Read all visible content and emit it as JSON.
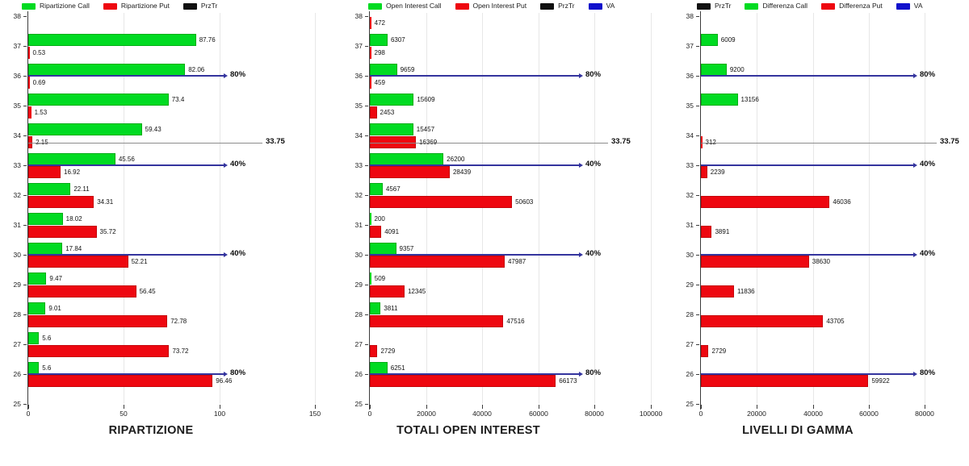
{
  "page": {
    "background": "#ffffff"
  },
  "colors": {
    "call_green": "#00db22",
    "put_red": "#ee0710",
    "va_blue": "#34349e",
    "va_legend_blue": "#1111cc",
    "prztr_gray": "#8c8c8c",
    "prztr_black": "#111111",
    "grid": "#e7e7e7",
    "axis": "#3c3c3c"
  },
  "chart_data": [
    {
      "type": "bar",
      "orientation": "horizontal",
      "title": "RIPARTIZIONE",
      "categories": [
        38,
        37,
        36,
        35,
        34,
        33,
        32,
        31,
        30,
        29,
        28,
        27,
        26,
        25
      ],
      "series": [
        {
          "name": "Ripartizione Call",
          "role": "call",
          "color_key": "call_green",
          "values": [
            null,
            87.76,
            82.06,
            73.4,
            59.43,
            45.56,
            22.11,
            18.02,
            17.84,
            9.47,
            9.01,
            5.6,
            5.6,
            null
          ]
        },
        {
          "name": "Ripartizione Put",
          "role": "put",
          "color_key": "put_red",
          "values": [
            null,
            0.53,
            0.69,
            1.53,
            2.15,
            16.92,
            34.31,
            35.72,
            52.21,
            56.45,
            72.78,
            73.72,
            96.46,
            null
          ]
        }
      ],
      "legend": [
        {
          "label": "Ripartizione Call",
          "swatch": "call_green"
        },
        {
          "label": "Ripartizione Put",
          "swatch": "put_red"
        },
        {
          "label": "PrzTr",
          "swatch": "prztr_black"
        }
      ],
      "legend_position": "top",
      "grid": "vertical-major",
      "xlim": [
        0,
        150
      ],
      "xticks": [
        0,
        50,
        100,
        150
      ],
      "ylim": [
        25,
        38
      ],
      "ref_lines": [
        {
          "y": 36,
          "label": "80%",
          "kind": "va",
          "x_end": 104
        },
        {
          "y": 33.75,
          "label": "33.75",
          "kind": "prztr",
          "x_end": 122.5
        },
        {
          "y": 33,
          "label": "40%",
          "kind": "va",
          "x_end": 104
        },
        {
          "y": 30,
          "label": "40%",
          "kind": "va",
          "x_end": 104
        },
        {
          "y": 26,
          "label": "80%",
          "kind": "va",
          "x_end": 104
        }
      ]
    },
    {
      "type": "bar",
      "orientation": "horizontal",
      "title": "TOTALI OPEN INTEREST",
      "categories": [
        38,
        37,
        36,
        35,
        34,
        33,
        32,
        31,
        30,
        29,
        28,
        27,
        26,
        25
      ],
      "series": [
        {
          "name": "Open Interest Call",
          "role": "call",
          "color_key": "call_green",
          "values": [
            null,
            6307,
            9659,
            15609,
            15457,
            26200,
            4567,
            200,
            9357,
            509,
            3811,
            null,
            6251,
            null
          ]
        },
        {
          "name": "Open Interest Put",
          "role": "put",
          "color_key": "put_red",
          "values": [
            472,
            298,
            459,
            2453,
            16369,
            28439,
            50603,
            4091,
            47987,
            12345,
            47516,
            2729,
            66173,
            null
          ]
        }
      ],
      "legend": [
        {
          "label": "Open Interest Call",
          "swatch": "call_green"
        },
        {
          "label": "Open Interest Put",
          "swatch": "put_red"
        },
        {
          "label": "PrzTr",
          "swatch": "prztr_black"
        },
        {
          "label": "VA",
          "swatch": "va_legend_blue"
        }
      ],
      "legend_position": "top",
      "grid": "vertical-major",
      "xlim": [
        0,
        100000
      ],
      "xticks": [
        0,
        20000,
        40000,
        60000,
        80000,
        100000
      ],
      "ylim": [
        25,
        38
      ],
      "ref_lines": [
        {
          "y": 36,
          "label": "80%",
          "kind": "va",
          "x_end": 75500
        },
        {
          "y": 33.75,
          "label": "33.75",
          "kind": "prztr",
          "x_end": 84800
        },
        {
          "y": 33,
          "label": "40%",
          "kind": "va",
          "x_end": 75500
        },
        {
          "y": 30,
          "label": "40%",
          "kind": "va",
          "x_end": 75500
        },
        {
          "y": 26,
          "label": "80%",
          "kind": "va",
          "x_end": 75500
        }
      ]
    },
    {
      "type": "bar",
      "orientation": "horizontal",
      "title": "LIVELLI DI GAMMA",
      "categories": [
        38,
        37,
        36,
        35,
        34,
        33,
        32,
        31,
        30,
        29,
        28,
        27,
        26,
        25
      ],
      "series": [
        {
          "name": "Differenza Call",
          "role": "call",
          "color_key": "call_green",
          "values": [
            null,
            6009,
            9200,
            13156,
            null,
            null,
            null,
            null,
            null,
            null,
            null,
            null,
            null,
            null
          ]
        },
        {
          "name": "Differenza Put",
          "role": "put",
          "color_key": "put_red",
          "values": [
            null,
            null,
            null,
            null,
            312,
            2239,
            46036,
            3891,
            38630,
            11836,
            43705,
            2729,
            59922,
            null
          ]
        }
      ],
      "legend": [
        {
          "label": "PrzTr",
          "swatch": "prztr_black"
        },
        {
          "label": "Differenza Call",
          "swatch": "call_green"
        },
        {
          "label": "Differenza Put",
          "swatch": "put_red"
        },
        {
          "label": "VA",
          "swatch": "va_legend_blue"
        }
      ],
      "legend_position": "top",
      "grid": "vertical-major",
      "xlim": [
        0,
        80000
      ],
      "xticks": [
        0,
        20000,
        40000,
        60000,
        80000
      ],
      "ylim": [
        25,
        38
      ],
      "ref_lines": [
        {
          "y": 36,
          "label": "80%",
          "kind": "va",
          "x_end": 77000
        },
        {
          "y": 33.75,
          "label": "33.75",
          "kind": "prztr",
          "x_end": 84300
        },
        {
          "y": 33,
          "label": "40%",
          "kind": "va",
          "x_end": 77000
        },
        {
          "y": 30,
          "label": "40%",
          "kind": "va",
          "x_end": 77000
        },
        {
          "y": 26,
          "label": "80%",
          "kind": "va",
          "x_end": 77000
        }
      ]
    }
  ]
}
